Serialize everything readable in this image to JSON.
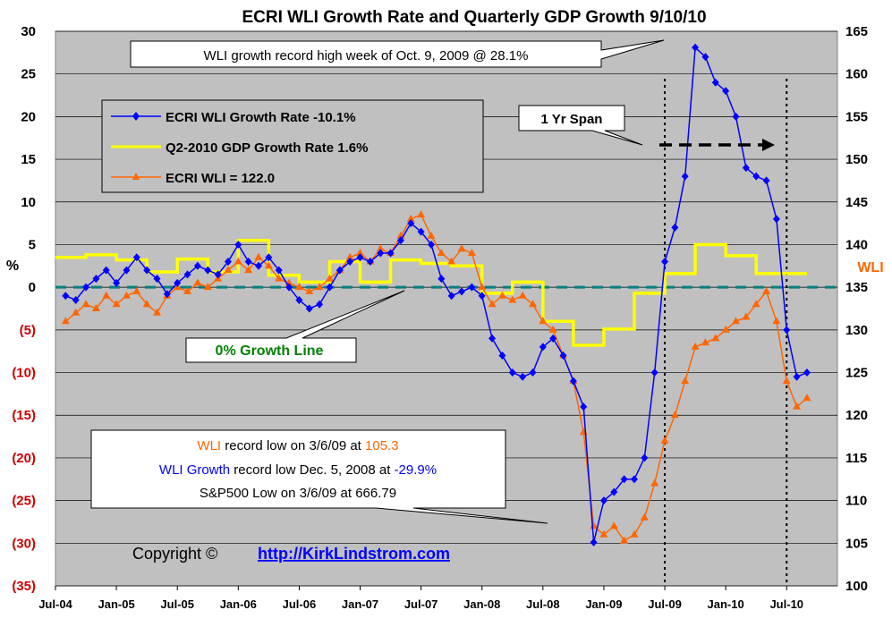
{
  "chart_data": {
    "type": "line",
    "title": "ECRI WLI Growth Rate and Quarterly GDP Growth  9/10/10",
    "ylabel_left": "%",
    "ylabel_right": "WLI",
    "left_axis": {
      "min": -35,
      "max": 30,
      "ticks": [
        {
          "v": 30,
          "label": "30",
          "color": "#000000"
        },
        {
          "v": 25,
          "label": "25",
          "color": "#000000"
        },
        {
          "v": 20,
          "label": "20",
          "color": "#000000"
        },
        {
          "v": 15,
          "label": "15",
          "color": "#000000"
        },
        {
          "v": 10,
          "label": "10",
          "color": "#000000"
        },
        {
          "v": 5,
          "label": "5",
          "color": "#000000"
        },
        {
          "v": 0,
          "label": "0",
          "color": "#000000"
        },
        {
          "v": -5,
          "label": "(5)",
          "color": "#cc0000"
        },
        {
          "v": -10,
          "label": "(10)",
          "color": "#cc0000"
        },
        {
          "v": -15,
          "label": "(15)",
          "color": "#cc0000"
        },
        {
          "v": -20,
          "label": "(20)",
          "color": "#cc0000"
        },
        {
          "v": -25,
          "label": "(25)",
          "color": "#cc0000"
        },
        {
          "v": -30,
          "label": "(30)",
          "color": "#cc0000"
        },
        {
          "v": -35,
          "label": "(35)",
          "color": "#cc0000"
        }
      ]
    },
    "right_axis": {
      "min": 100,
      "max": 165,
      "ticks": [
        "165",
        "160",
        "155",
        "150",
        "145",
        "140",
        "135",
        "130",
        "125",
        "120",
        "115",
        "110",
        "105",
        "100"
      ]
    },
    "x_axis": {
      "min": "2004-07",
      "max": "2010-12",
      "ticks": [
        {
          "date": "2004-07",
          "label": "Jul-04"
        },
        {
          "date": "2005-01",
          "label": "Jan-05"
        },
        {
          "date": "2005-07",
          "label": "Jul-05"
        },
        {
          "date": "2006-01",
          "label": "Jan-06"
        },
        {
          "date": "2006-07",
          "label": "Jul-06"
        },
        {
          "date": "2007-01",
          "label": "Jan-07"
        },
        {
          "date": "2007-07",
          "label": "Jul-07"
        },
        {
          "date": "2008-01",
          "label": "Jan-08"
        },
        {
          "date": "2008-07",
          "label": "Jul-08"
        },
        {
          "date": "2009-01",
          "label": "Jan-09"
        },
        {
          "date": "2009-07",
          "label": "Jul-09"
        },
        {
          "date": "2010-01",
          "label": "Jan-10"
        },
        {
          "date": "2010-07",
          "label": "Jul-10"
        }
      ]
    },
    "grid": true,
    "colors": {
      "plot_bg": "#c0c0c0",
      "wli_growth": "#0000ff",
      "gdp": "#ffff00",
      "wli": "#ff6600",
      "zero_line": "#008080"
    },
    "series": [
      {
        "name": "ECRI WLI Growth Rate -10.1%",
        "axis": "left",
        "color": "#0000ff",
        "marker": "diamond",
        "points": [
          [
            "2004-08",
            -1
          ],
          [
            "2004-09",
            -1.5
          ],
          [
            "2004-10",
            0
          ],
          [
            "2004-11",
            1
          ],
          [
            "2004-12",
            2
          ],
          [
            "2005-01",
            0.5
          ],
          [
            "2005-02",
            2
          ],
          [
            "2005-03",
            3.5
          ],
          [
            "2005-04",
            2
          ],
          [
            "2005-05",
            1
          ],
          [
            "2005-06",
            -0.8
          ],
          [
            "2005-07",
            0.5
          ],
          [
            "2005-08",
            1.5
          ],
          [
            "2005-09",
            2.5
          ],
          [
            "2005-10",
            2
          ],
          [
            "2005-11",
            1.5
          ],
          [
            "2005-12",
            3
          ],
          [
            "2006-01",
            5
          ],
          [
            "2006-02",
            3
          ],
          [
            "2006-03",
            2.5
          ],
          [
            "2006-04",
            3.5
          ],
          [
            "2006-05",
            2
          ],
          [
            "2006-06",
            0
          ],
          [
            "2006-07",
            -1.5
          ],
          [
            "2006-08",
            -2.5
          ],
          [
            "2006-09",
            -2
          ],
          [
            "2006-10",
            0
          ],
          [
            "2006-11",
            2
          ],
          [
            "2006-12",
            3
          ],
          [
            "2007-01",
            3.5
          ],
          [
            "2007-02",
            3
          ],
          [
            "2007-03",
            4
          ],
          [
            "2007-04",
            4
          ],
          [
            "2007-05",
            5.5
          ],
          [
            "2007-06",
            7.5
          ],
          [
            "2007-07",
            6.5
          ],
          [
            "2007-08",
            5
          ],
          [
            "2007-09",
            1
          ],
          [
            "2007-10",
            -1
          ],
          [
            "2007-11",
            -0.5
          ],
          [
            "2007-12",
            0
          ],
          [
            "2008-01",
            -1
          ],
          [
            "2008-02",
            -6
          ],
          [
            "2008-03",
            -8
          ],
          [
            "2008-04",
            -10
          ],
          [
            "2008-05",
            -10.5
          ],
          [
            "2008-06",
            -10
          ],
          [
            "2008-07",
            -7
          ],
          [
            "2008-08",
            -6
          ],
          [
            "2008-09",
            -8
          ],
          [
            "2008-10",
            -11
          ],
          [
            "2008-11",
            -14
          ],
          [
            "2008-12",
            -29.9
          ],
          [
            "2009-01",
            -25
          ],
          [
            "2009-02",
            -24
          ],
          [
            "2009-03",
            -22.5
          ],
          [
            "2009-04",
            -22.5
          ],
          [
            "2009-05",
            -20
          ],
          [
            "2009-06",
            -10
          ],
          [
            "2009-07",
            3
          ],
          [
            "2009-08",
            7
          ],
          [
            "2009-09",
            13
          ],
          [
            "2009-10",
            28.1
          ],
          [
            "2009-11",
            27
          ],
          [
            "2009-12",
            24
          ],
          [
            "2010-01",
            23
          ],
          [
            "2010-02",
            20
          ],
          [
            "2010-03",
            14
          ],
          [
            "2010-04",
            13
          ],
          [
            "2010-05",
            12.5
          ],
          [
            "2010-06",
            8
          ],
          [
            "2010-07",
            -5
          ],
          [
            "2010-08",
            -10.5
          ],
          [
            "2010-09",
            -10
          ]
        ]
      },
      {
        "name": "Q2-2010 GDP Growth Rate 1.6%",
        "axis": "left",
        "color": "#ffff00",
        "marker": "none",
        "steps": [
          [
            "2004-07",
            3.5
          ],
          [
            "2004-10",
            3.8
          ],
          [
            "2005-01",
            3.2
          ],
          [
            "2005-04",
            1.8
          ],
          [
            "2005-07",
            3.3
          ],
          [
            "2005-10",
            1.8
          ],
          [
            "2006-01",
            5.5
          ],
          [
            "2006-04",
            1.4
          ],
          [
            "2006-07",
            0.6
          ],
          [
            "2006-10",
            3
          ],
          [
            "2007-01",
            0.6
          ],
          [
            "2007-04",
            3.2
          ],
          [
            "2007-07",
            2.8
          ],
          [
            "2007-10",
            2.5
          ],
          [
            "2008-01",
            -0.7
          ],
          [
            "2008-04",
            0.6
          ],
          [
            "2008-07",
            -4
          ],
          [
            "2008-10",
            -6.8
          ],
          [
            "2009-01",
            -4.9
          ],
          [
            "2009-04",
            -0.7
          ],
          [
            "2009-07",
            1.6
          ],
          [
            "2009-10",
            5
          ],
          [
            "2010-01",
            3.7
          ],
          [
            "2010-04",
            1.6
          ],
          [
            "2010-09",
            1.6
          ]
        ]
      },
      {
        "name": "ECRI WLI = 122.0",
        "axis": "right",
        "color": "#ff6600",
        "marker": "triangle",
        "points": [
          [
            "2004-08",
            131
          ],
          [
            "2004-09",
            132
          ],
          [
            "2004-10",
            133
          ],
          [
            "2004-11",
            132.5
          ],
          [
            "2004-12",
            134
          ],
          [
            "2005-01",
            133
          ],
          [
            "2005-02",
            134
          ],
          [
            "2005-03",
            134.5
          ],
          [
            "2005-04",
            133
          ],
          [
            "2005-05",
            132
          ],
          [
            "2005-06",
            134
          ],
          [
            "2005-07",
            135
          ],
          [
            "2005-08",
            134.5
          ],
          [
            "2005-09",
            135.5
          ],
          [
            "2005-10",
            135
          ],
          [
            "2005-11",
            136
          ],
          [
            "2005-12",
            137
          ],
          [
            "2006-01",
            138
          ],
          [
            "2006-02",
            137
          ],
          [
            "2006-03",
            138.5
          ],
          [
            "2006-04",
            137.5
          ],
          [
            "2006-05",
            136
          ],
          [
            "2006-06",
            135.5
          ],
          [
            "2006-07",
            135
          ],
          [
            "2006-08",
            134.5
          ],
          [
            "2006-09",
            135
          ],
          [
            "2006-10",
            136
          ],
          [
            "2006-11",
            137
          ],
          [
            "2006-12",
            138.5
          ],
          [
            "2007-01",
            139
          ],
          [
            "2007-02",
            138
          ],
          [
            "2007-03",
            139.5
          ],
          [
            "2007-04",
            139
          ],
          [
            "2007-05",
            141
          ],
          [
            "2007-06",
            143
          ],
          [
            "2007-07",
            143.5
          ],
          [
            "2007-08",
            141
          ],
          [
            "2007-09",
            139
          ],
          [
            "2007-10",
            138
          ],
          [
            "2007-11",
            139.5
          ],
          [
            "2007-12",
            139
          ],
          [
            "2008-01",
            135
          ],
          [
            "2008-02",
            133
          ],
          [
            "2008-03",
            134
          ],
          [
            "2008-04",
            133.5
          ],
          [
            "2008-05",
            134
          ],
          [
            "2008-06",
            133
          ],
          [
            "2008-07",
            131
          ],
          [
            "2008-08",
            130
          ],
          [
            "2008-09",
            127
          ],
          [
            "2008-10",
            124
          ],
          [
            "2008-11",
            118
          ],
          [
            "2008-12",
            107
          ],
          [
            "2009-01",
            106
          ],
          [
            "2009-02",
            107
          ],
          [
            "2009-03",
            105.3
          ],
          [
            "2009-04",
            106
          ],
          [
            "2009-05",
            108
          ],
          [
            "2009-06",
            112
          ],
          [
            "2009-07",
            117
          ],
          [
            "2009-08",
            120
          ],
          [
            "2009-09",
            124
          ],
          [
            "2009-10",
            128
          ],
          [
            "2009-11",
            128.5
          ],
          [
            "2009-12",
            129
          ],
          [
            "2010-01",
            130
          ],
          [
            "2010-02",
            131
          ],
          [
            "2010-03",
            131.5
          ],
          [
            "2010-04",
            133
          ],
          [
            "2010-05",
            134.5
          ],
          [
            "2010-06",
            131
          ],
          [
            "2010-07",
            124
          ],
          [
            "2010-08",
            121
          ],
          [
            "2010-09",
            122
          ]
        ]
      }
    ],
    "annotations": {
      "record_high": "WLI growth record high week of Oct. 9, 2009 @ 28.1%",
      "span": "1 Yr Span",
      "zero_line": "0%   Growth Line",
      "copyright": "Copyright ©",
      "url": "http://KirkLindstrom.com",
      "low_wli_1": "WLI",
      "low_wli_2": " record low on 3/6/09 at ",
      "low_wli_3": "105.3",
      "low_growth_1": "WLI Growth",
      "low_growth_2": " record low Dec. 5, 2008 at ",
      "low_growth_3": "-29.9%",
      "low_sp": "S&P500 Low on 3/6/09 at 666.79"
    },
    "vlines": [
      "2009-07",
      "2010-07"
    ],
    "legend_placement": "top-left"
  }
}
